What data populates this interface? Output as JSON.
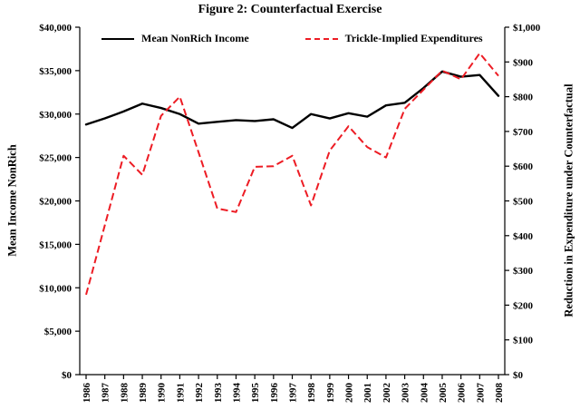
{
  "chart_data": {
    "type": "line",
    "title": "Figure 2: Counterfactual Exercise",
    "grid": false,
    "legend_position": "top-inside",
    "x": [
      1986,
      1987,
      1988,
      1989,
      1990,
      1991,
      1992,
      1993,
      1994,
      1995,
      1996,
      1997,
      1998,
      1999,
      2000,
      2001,
      2002,
      2003,
      2004,
      2005,
      2006,
      2007,
      2008
    ],
    "series": [
      {
        "name": "Mean NonRich Income",
        "axis": "left",
        "style": "solid",
        "color": "#000000",
        "values": [
          28800,
          29500,
          30300,
          31200,
          30700,
          30000,
          28900,
          29100,
          29300,
          29200,
          29400,
          28400,
          30000,
          29500,
          30100,
          29700,
          31000,
          31300,
          33000,
          34900,
          34300,
          34500,
          32100
        ]
      },
      {
        "name": "Trickle-Implied Expenditures",
        "axis": "right",
        "style": "dashed",
        "color": "#ed1c24",
        "values": [
          230,
          430,
          630,
          575,
          745,
          800,
          640,
          478,
          468,
          598,
          600,
          630,
          487,
          645,
          715,
          655,
          625,
          765,
          820,
          875,
          850,
          925,
          860
        ]
      }
    ],
    "left_axis": {
      "title": "Mean Income NonRich",
      "range": [
        0,
        40000
      ],
      "tick_values": [
        0,
        5000,
        10000,
        15000,
        20000,
        25000,
        30000,
        35000,
        40000
      ],
      "tick_labels": [
        "$0",
        "$5,000",
        "$10,000",
        "$15,000",
        "$20,000",
        "$25,000",
        "$30,000",
        "$35,000",
        "$40,000"
      ]
    },
    "right_axis": {
      "title": "Reduction in Expenditure under Counterfactual",
      "range": [
        0,
        1000
      ],
      "tick_values": [
        0,
        100,
        200,
        300,
        400,
        500,
        600,
        700,
        800,
        900,
        1000
      ],
      "tick_labels": [
        "$0",
        "$100",
        "$200",
        "$300",
        "$400",
        "$500",
        "$600",
        "$700",
        "$800",
        "$900",
        "$1,000"
      ]
    }
  }
}
